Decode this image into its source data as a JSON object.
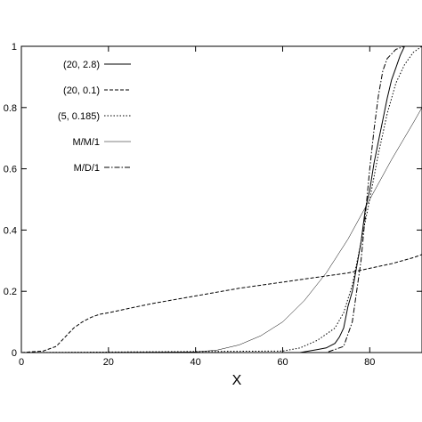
{
  "chart_data": {
    "type": "line",
    "title": "",
    "xlabel": "X",
    "ylabel": "",
    "xlim": [
      0,
      92
    ],
    "ylim": [
      0,
      1
    ],
    "x_ticks": [
      "0",
      "20",
      "40",
      "60",
      "80"
    ],
    "y_ticks": [
      "0",
      "0.2",
      "0.4",
      "0.6",
      "0.8",
      "1"
    ],
    "grid": false,
    "legend_position": "top-left",
    "series": [
      {
        "name": "(20, 2.8)",
        "style": "solid",
        "color": "#000000",
        "x": [
          0,
          64,
          68,
          70,
          72,
          73,
          74,
          75,
          76,
          77,
          78,
          79,
          80,
          81,
          82,
          83,
          84,
          85,
          86,
          87,
          88,
          89,
          90,
          92
        ],
        "y": [
          0,
          0,
          0.01,
          0.015,
          0.03,
          0.05,
          0.08,
          0.15,
          0.2,
          0.28,
          0.36,
          0.47,
          0.53,
          0.62,
          0.69,
          0.76,
          0.83,
          0.89,
          0.93,
          0.97,
          1.0,
          1.0,
          1.0,
          1.0
        ]
      },
      {
        "name": "(20, 0.1)",
        "style": "dashed",
        "color": "#000000",
        "x": [
          0,
          2,
          5,
          8,
          10,
          12,
          14,
          16,
          18,
          20,
          25,
          30,
          40,
          50,
          60,
          65,
          70,
          75,
          80,
          85,
          90,
          92
        ],
        "y": [
          0,
          0.002,
          0.005,
          0.02,
          0.05,
          0.08,
          0.1,
          0.115,
          0.125,
          0.13,
          0.145,
          0.16,
          0.185,
          0.21,
          0.23,
          0.24,
          0.25,
          0.26,
          0.275,
          0.29,
          0.31,
          0.32
        ]
      },
      {
        "name": "(5, 0.185)",
        "style": "dotted",
        "color": "#000000",
        "x": [
          0,
          60,
          64,
          68,
          72,
          74,
          76,
          78,
          79,
          80,
          82,
          84,
          86,
          88,
          90,
          92
        ],
        "y": [
          0,
          0.005,
          0.015,
          0.04,
          0.08,
          0.13,
          0.22,
          0.36,
          0.43,
          0.5,
          0.65,
          0.78,
          0.88,
          0.94,
          0.98,
          1.0
        ]
      },
      {
        "name": "M/M/1",
        "style": "thin",
        "color": "#000000",
        "x": [
          0,
          40,
          45,
          50,
          55,
          60,
          65,
          70,
          75,
          80,
          85,
          90,
          92
        ],
        "y": [
          0,
          0.002,
          0.008,
          0.025,
          0.055,
          0.1,
          0.17,
          0.26,
          0.37,
          0.5,
          0.63,
          0.75,
          0.8
        ]
      },
      {
        "name": "M/D/1",
        "style": "dashdot",
        "color": "#000000",
        "x": [
          0,
          70,
          74,
          76,
          78,
          79,
          80,
          81,
          82,
          83,
          84,
          86,
          88,
          90,
          92
        ],
        "y": [
          0,
          0,
          0.02,
          0.1,
          0.3,
          0.45,
          0.6,
          0.73,
          0.84,
          0.92,
          0.96,
          0.99,
          1.0,
          1.0,
          1.0
        ]
      }
    ]
  }
}
